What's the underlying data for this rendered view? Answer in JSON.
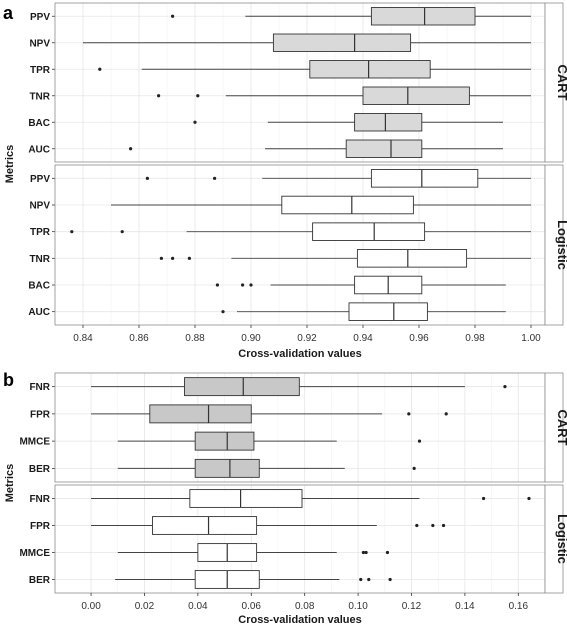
{
  "chart_data": [
    {
      "type": "boxplot",
      "panel_label": "a",
      "xlabel": "Cross-validation values",
      "ylabel": "Metrics",
      "xlim": [
        0.83,
        1.005
      ],
      "x_ticks": [
        "0.84",
        "0.86",
        "0.88",
        "0.90",
        "0.92",
        "0.94",
        "0.96",
        "0.98",
        "1.00"
      ],
      "x_tick_values": [
        0.84,
        0.86,
        0.88,
        0.9,
        0.92,
        0.94,
        0.96,
        0.98,
        1.0
      ],
      "grid": true,
      "fill_colors": {
        "CART": "#d9d9d9",
        "Logistic": "#ffffff"
      },
      "facets": [
        {
          "name": "CART",
          "boxes": [
            {
              "category": "PPV",
              "whisker_low": 0.898,
              "q1": 0.943,
              "median": 0.962,
              "q3": 0.98,
              "whisker_high": 1.0,
              "outliers": [
                0.872
              ]
            },
            {
              "category": "NPV",
              "whisker_low": 0.84,
              "q1": 0.908,
              "median": 0.937,
              "q3": 0.957,
              "whisker_high": 1.0,
              "outliers": []
            },
            {
              "category": "TPR",
              "whisker_low": 0.861,
              "q1": 0.921,
              "median": 0.942,
              "q3": 0.964,
              "whisker_high": 1.0,
              "outliers": [
                0.846
              ]
            },
            {
              "category": "TNR",
              "whisker_low": 0.891,
              "q1": 0.94,
              "median": 0.956,
              "q3": 0.978,
              "whisker_high": 1.0,
              "outliers": [
                0.867,
                0.881
              ]
            },
            {
              "category": "BAC",
              "whisker_low": 0.906,
              "q1": 0.937,
              "median": 0.948,
              "q3": 0.961,
              "whisker_high": 0.99,
              "outliers": [
                0.88
              ]
            },
            {
              "category": "AUC",
              "whisker_low": 0.905,
              "q1": 0.934,
              "median": 0.95,
              "q3": 0.961,
              "whisker_high": 0.99,
              "outliers": [
                0.857
              ]
            }
          ]
        },
        {
          "name": "Logistic",
          "boxes": [
            {
              "category": "PPV",
              "whisker_low": 0.904,
              "q1": 0.943,
              "median": 0.961,
              "q3": 0.981,
              "whisker_high": 1.0,
              "outliers": [
                0.863,
                0.887
              ]
            },
            {
              "category": "NPV",
              "whisker_low": 0.85,
              "q1": 0.911,
              "median": 0.936,
              "q3": 0.958,
              "whisker_high": 1.0,
              "outliers": []
            },
            {
              "category": "TPR",
              "whisker_low": 0.877,
              "q1": 0.922,
              "median": 0.944,
              "q3": 0.962,
              "whisker_high": 1.0,
              "outliers": [
                0.836,
                0.854
              ]
            },
            {
              "category": "TNR",
              "whisker_low": 0.893,
              "q1": 0.938,
              "median": 0.956,
              "q3": 0.977,
              "whisker_high": 1.0,
              "outliers": [
                0.868,
                0.872,
                0.878
              ]
            },
            {
              "category": "BAC",
              "whisker_low": 0.907,
              "q1": 0.937,
              "median": 0.949,
              "q3": 0.961,
              "whisker_high": 0.991,
              "outliers": [
                0.888,
                0.897,
                0.9
              ]
            },
            {
              "category": "AUC",
              "whisker_low": 0.895,
              "q1": 0.935,
              "median": 0.951,
              "q3": 0.963,
              "whisker_high": 0.991,
              "outliers": [
                0.89
              ]
            }
          ]
        }
      ]
    },
    {
      "type": "boxplot",
      "panel_label": "b",
      "xlabel": "Cross-validation values",
      "ylabel": "Metrics",
      "xlim": [
        -0.0135,
        0.17
      ],
      "x_ticks": [
        "0.00",
        "0.02",
        "0.04",
        "0.06",
        "0.08",
        "0.10",
        "0.12",
        "0.14",
        "0.16"
      ],
      "x_tick_values": [
        0.0,
        0.02,
        0.04,
        0.06,
        0.08,
        0.1,
        0.12,
        0.14,
        0.16
      ],
      "grid": true,
      "fill_colors": {
        "CART": "#c8c8c8",
        "Logistic": "#ffffff"
      },
      "facets": [
        {
          "name": "CART",
          "boxes": [
            {
              "category": "FNR",
              "whisker_low": 0.0,
              "q1": 0.035,
              "median": 0.057,
              "q3": 0.078,
              "whisker_high": 0.14,
              "outliers": [
                0.155
              ]
            },
            {
              "category": "FPR",
              "whisker_low": 0.0,
              "q1": 0.022,
              "median": 0.044,
              "q3": 0.06,
              "whisker_high": 0.109,
              "outliers": [
                0.119,
                0.133
              ]
            },
            {
              "category": "MMCE",
              "whisker_low": 0.01,
              "q1": 0.039,
              "median": 0.051,
              "q3": 0.061,
              "whisker_high": 0.092,
              "outliers": [
                0.123
              ]
            },
            {
              "category": "BER",
              "whisker_low": 0.01,
              "q1": 0.039,
              "median": 0.052,
              "q3": 0.063,
              "whisker_high": 0.095,
              "outliers": [
                0.121
              ]
            }
          ]
        },
        {
          "name": "Logistic",
          "boxes": [
            {
              "category": "FNR",
              "whisker_low": 0.0,
              "q1": 0.037,
              "median": 0.056,
              "q3": 0.079,
              "whisker_high": 0.123,
              "outliers": [
                0.147,
                0.164
              ]
            },
            {
              "category": "FPR",
              "whisker_low": 0.0,
              "q1": 0.023,
              "median": 0.044,
              "q3": 0.062,
              "whisker_high": 0.107,
              "outliers": [
                0.122,
                0.128,
                0.132
              ]
            },
            {
              "category": "MMCE",
              "whisker_low": 0.01,
              "q1": 0.04,
              "median": 0.051,
              "q3": 0.062,
              "whisker_high": 0.092,
              "outliers": [
                0.102,
                0.103,
                0.111
              ]
            },
            {
              "category": "BER",
              "whisker_low": 0.009,
              "q1": 0.039,
              "median": 0.051,
              "q3": 0.063,
              "whisker_high": 0.093,
              "outliers": [
                0.101,
                0.104,
                0.112
              ]
            }
          ]
        }
      ]
    }
  ]
}
